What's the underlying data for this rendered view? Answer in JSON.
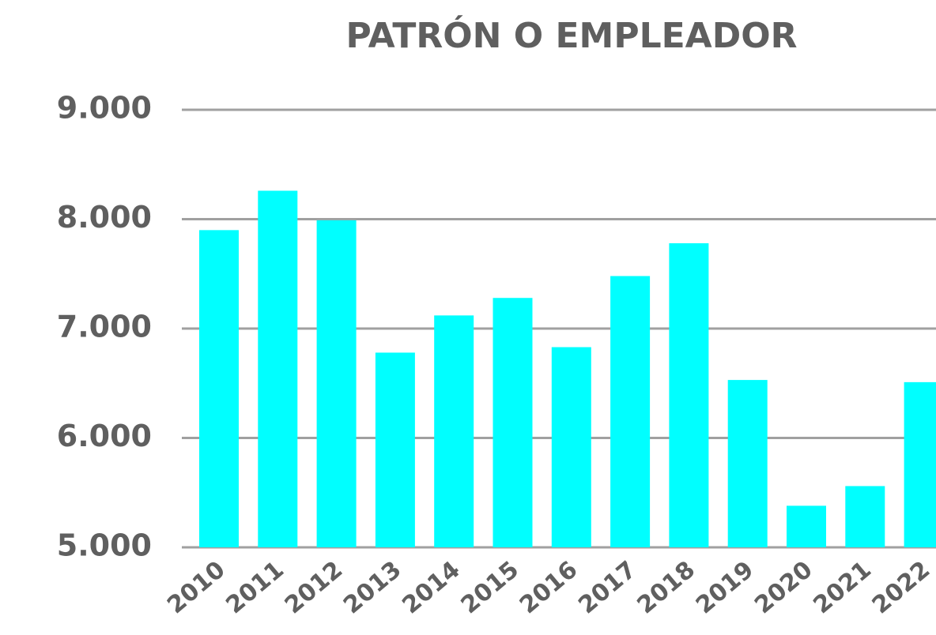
{
  "chart_data": {
    "type": "bar",
    "title": "PATRÓN O EMPLEADOR",
    "categories": [
      "2010",
      "2011",
      "2012",
      "2013",
      "2014",
      "2015",
      "2016",
      "2017",
      "2018",
      "2019",
      "2020",
      "2021",
      "2022"
    ],
    "values": [
      7900,
      8260,
      7990,
      6780,
      7120,
      7280,
      6830,
      7480,
      7780,
      6530,
      5380,
      5560,
      6510
    ],
    "color": "#00ffff",
    "ylim": [
      5000,
      9000
    ],
    "yticks": [
      {
        "value": 5000,
        "label": "5.000"
      },
      {
        "value": 6000,
        "label": "6.000"
      },
      {
        "value": 7000,
        "label": "7.000"
      },
      {
        "value": 8000,
        "label": "8.000"
      },
      {
        "value": 9000,
        "label": "9.000"
      }
    ],
    "grid": true
  }
}
